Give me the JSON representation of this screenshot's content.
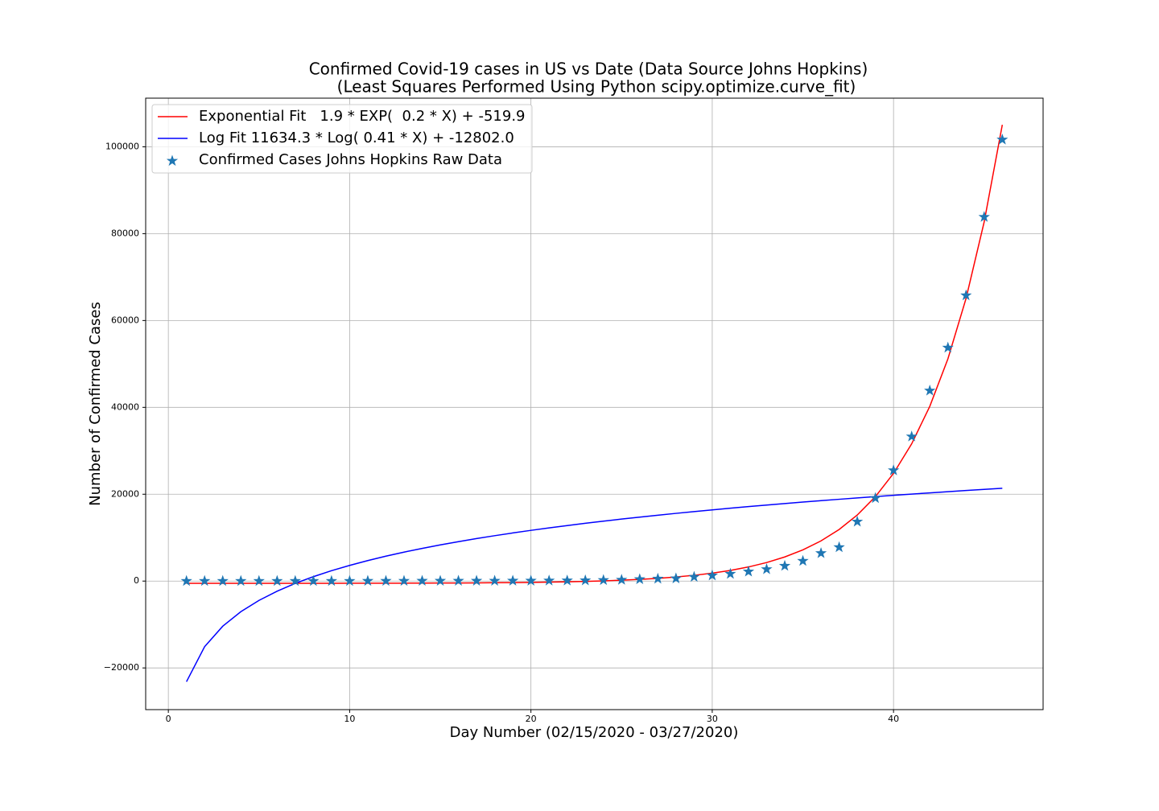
{
  "chart_data": {
    "type": "line",
    "title": "Confirmed Covid-19 cases in US vs Date (Data Source Johns Hopkins)",
    "subtitle": "(Least Squares Performed Using Python scipy.optimize.curve_fit)",
    "x_label": "Day Number (02/15/2020 - 03/27/2020)",
    "y_label": "Number of Confirmed Cases",
    "x": [
      1,
      2,
      3,
      4,
      5,
      6,
      7,
      8,
      9,
      10,
      11,
      12,
      13,
      14,
      15,
      16,
      17,
      18,
      19,
      20,
      21,
      22,
      23,
      24,
      25,
      26,
      27,
      28,
      29,
      30,
      31,
      32,
      33,
      34,
      35,
      36,
      37,
      38,
      39,
      40,
      41,
      42,
      43,
      44,
      45,
      46
    ],
    "series": [
      {
        "name": "Exponential Fit   1.9 * EXP(  0.2 * X) + -519.9",
        "color": "#ff0000",
        "style": "line",
        "values": [
          -518,
          -517,
          -516,
          -515,
          -514,
          -512,
          -510,
          -507,
          -504,
          -500,
          -494,
          -488,
          -479,
          -468,
          -454,
          -436,
          -414,
          -385,
          -349,
          -303,
          -245,
          -171,
          -77,
          42,
          193,
          384,
          628,
          936,
          1327,
          1823,
          2453,
          3252,
          4266,
          5552,
          7183,
          9253,
          11878,
          15210,
          19437,
          24799,
          31601,
          40232,
          51182,
          65075,
          82700,
          105063
        ]
      },
      {
        "name": "Log Fit 11634.3 * Log( 0.41 * X) + -12802.0",
        "color": "#0000ff",
        "style": "line",
        "values": [
          -23175,
          -15111,
          -10394,
          -7046,
          -4451,
          -2329,
          -536,
          1018,
          2388,
          3614,
          4723,
          5735,
          6666,
          7529,
          8332,
          9082,
          9787,
          10453,
          11081,
          11678,
          12246,
          12787,
          13305,
          13800,
          14275,
          14731,
          15169,
          15593,
          16001,
          16396,
          16777,
          17146,
          17504,
          17852,
          18188,
          18517,
          18835,
          19146,
          19448,
          19743,
          20030,
          20311,
          20584,
          20852,
          21113,
          21368
        ]
      },
      {
        "name": "Confirmed Cases Johns Hopkins Raw Data",
        "color": "#1f77b4",
        "style": "star",
        "values": [
          12,
          12,
          13,
          13,
          15,
          15,
          15,
          15,
          15,
          15,
          35,
          35,
          35,
          53,
          53,
          59,
          60,
          62,
          70,
          76,
          101,
          122,
          153,
          221,
          278,
          417,
          537,
          605,
          959,
          1281,
          1663,
          2179,
          2727,
          3499,
          4632,
          6421,
          7786,
          13680,
          19101,
          25493,
          33276,
          43847,
          53740,
          65778,
          83836,
          101657
        ]
      }
    ],
    "xlim": [
      -1.25,
      48.25
    ],
    "xticks": [
      0,
      10,
      20,
      30,
      40
    ],
    "ylim": [
      -29600,
      111200
    ],
    "yticks": [
      {
        "value": -20000,
        "label": "−20000"
      },
      0,
      20000,
      40000,
      60000,
      80000,
      100000
    ],
    "grid": true,
    "legend": "upper-left"
  }
}
